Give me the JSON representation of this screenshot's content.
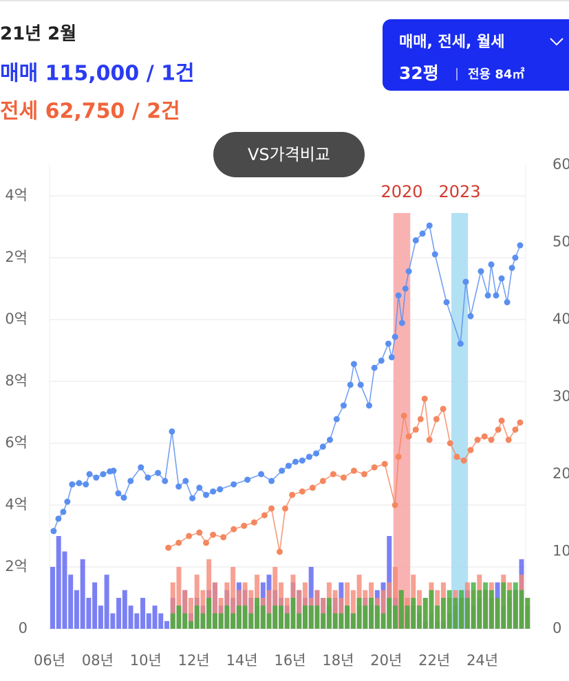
{
  "header": {
    "date": "21년 2월",
    "sale": "매매 115,000 / 1건",
    "jeonse": "전세 62,750 / 2건"
  },
  "filter": {
    "types": "매매, 전세, 월세",
    "size": "32평",
    "area": "전용 84㎡"
  },
  "compare_button": "VS가격비교",
  "chart_data": {
    "type": "line",
    "xlim": [
      2006,
      2025.8
    ],
    "xticks": [
      {
        "value": 2006,
        "label": "06년"
      },
      {
        "value": 2008,
        "label": "08년"
      },
      {
        "value": 2010,
        "label": "10년"
      },
      {
        "value": 2012,
        "label": "12년"
      },
      {
        "value": 2014,
        "label": "14년"
      },
      {
        "value": 2016,
        "label": "16년"
      },
      {
        "value": 2018,
        "label": "18년"
      },
      {
        "value": 2020,
        "label": "20년"
      },
      {
        "value": 2022,
        "label": "22년"
      },
      {
        "value": 2024,
        "label": "24년"
      }
    ],
    "ylim": [
      0,
      15
    ],
    "yticks": [
      0,
      {
        "value": 2,
        "label": "2억"
      },
      {
        "value": 4,
        "label": "4억"
      },
      {
        "value": 6,
        "label": "6억"
      },
      {
        "value": 8,
        "label": "8억"
      },
      {
        "value": 10,
        "label": "0억"
      },
      {
        "value": 12,
        "label": "2억"
      },
      {
        "value": 14,
        "label": "4억"
      }
    ],
    "y2lim": [
      0,
      60
    ],
    "y2ticks": [
      0,
      10,
      20,
      30,
      40,
      50,
      60
    ],
    "grid": true,
    "bands": [
      {
        "label": "2020",
        "from": 2020.3,
        "to": 2021.0,
        "color": "#f8a4a4",
        "label_color": "#d43a2f"
      },
      {
        "label": "2023",
        "from": 2022.71,
        "to": 2023.4,
        "color": "#a6dcf2",
        "label_color": "#d43a2f"
      }
    ],
    "series": [
      {
        "color": "#5a8ff0",
        "x": [
          2006.17,
          2006.37,
          2006.57,
          2006.74,
          2006.94,
          2007.23,
          2007.51,
          2007.66,
          2007.94,
          2008.23,
          2008.51,
          2008.66,
          2008.86,
          2009.09,
          2009.37,
          2009.8,
          2010.09,
          2010.51,
          2010.8,
          2011.09,
          2011.37,
          2011.66,
          2011.94,
          2012.23,
          2012.51,
          2012.8,
          2013.09,
          2013.66,
          2014.23,
          2014.8,
          2015.23,
          2015.66,
          2015.94,
          2016.23,
          2016.51,
          2016.8,
          2017.09,
          2017.37,
          2017.66,
          2017.94,
          2018.23,
          2018.51,
          2018.66,
          2018.94,
          2019.29,
          2019.51,
          2019.8,
          2020.09,
          2020.23,
          2020.37,
          2020.51,
          2020.66,
          2020.8,
          2020.94,
          2021.23,
          2021.51,
          2021.8,
          2022.03,
          2022.51,
          2023.09,
          2023.31,
          2023.51,
          2023.94,
          2024.23,
          2024.37,
          2024.57,
          2024.8,
          2025.03,
          2025.23,
          2025.37,
          2025.57
        ],
        "values": [
          3.16,
          3.56,
          3.78,
          4.11,
          4.67,
          4.71,
          4.67,
          5.0,
          4.89,
          5.0,
          5.09,
          5.11,
          4.38,
          4.24,
          4.78,
          5.22,
          4.89,
          5.04,
          4.78,
          6.38,
          4.6,
          4.78,
          4.22,
          4.56,
          4.33,
          4.44,
          4.51,
          4.67,
          4.82,
          5.0,
          4.78,
          5.11,
          5.27,
          5.4,
          5.44,
          5.56,
          5.67,
          5.89,
          6.11,
          6.78,
          7.22,
          7.89,
          8.56,
          7.89,
          7.22,
          8.44,
          8.67,
          9.22,
          8.78,
          9.44,
          10.78,
          9.89,
          11.0,
          11.56,
          12.56,
          12.78,
          13.04,
          12.11,
          10.56,
          9.22,
          11.22,
          10.11,
          11.56,
          10.78,
          11.78,
          10.78,
          11.33,
          10.56,
          11.67,
          12.0,
          12.4
        ]
      },
      {
        "color": "#f4875f",
        "x": [
          2010.94,
          2011.37,
          2011.8,
          2012.23,
          2012.51,
          2012.8,
          2013.23,
          2013.66,
          2014.09,
          2014.51,
          2014.94,
          2015.23,
          2015.57,
          2015.8,
          2016.09,
          2016.51,
          2016.94,
          2017.37,
          2017.8,
          2018.23,
          2018.66,
          2019.09,
          2019.51,
          2019.94,
          2020.37,
          2020.51,
          2020.74,
          2020.94,
          2021.23,
          2021.43,
          2021.6,
          2021.8,
          2022.09,
          2022.37,
          2022.66,
          2022.94,
          2023.23,
          2023.51,
          2023.8,
          2024.09,
          2024.37,
          2024.66,
          2024.8,
          2025.09,
          2025.37,
          2025.57
        ],
        "values": [
          2.62,
          2.78,
          3.0,
          3.11,
          2.78,
          3.04,
          2.96,
          3.22,
          3.33,
          3.44,
          3.67,
          3.89,
          2.49,
          3.89,
          4.33,
          4.44,
          4.56,
          4.78,
          5.0,
          4.89,
          5.11,
          5.0,
          5.22,
          5.33,
          4.0,
          5.56,
          6.89,
          6.22,
          6.44,
          6.78,
          7.44,
          6.11,
          6.78,
          7.11,
          6.0,
          5.56,
          5.44,
          5.78,
          6.11,
          6.22,
          6.11,
          6.44,
          6.73,
          6.11,
          6.44,
          6.67
        ]
      }
    ],
    "bar_x": [
      2006,
      2006.25,
      2006.5,
      2006.75,
      2007,
      2007.25,
      2007.5,
      2007.75,
      2008,
      2008.25,
      2008.5,
      2008.75,
      2009,
      2009.25,
      2009.5,
      2009.75,
      2010,
      2010.25,
      2010.5,
      2010.75,
      2011,
      2011.25,
      2011.5,
      2011.75,
      2012,
      2012.25,
      2012.5,
      2012.75,
      2013,
      2013.25,
      2013.5,
      2013.75,
      2014,
      2014.25,
      2014.5,
      2014.75,
      2015,
      2015.25,
      2015.5,
      2015.75,
      2016,
      2016.25,
      2016.5,
      2016.75,
      2017,
      2017.25,
      2017.5,
      2017.75,
      2018,
      2018.25,
      2018.5,
      2018.75,
      2019,
      2019.25,
      2019.5,
      2019.75,
      2020,
      2020.25,
      2020.5,
      2020.75,
      2021,
      2021.25,
      2021.5,
      2021.75,
      2022,
      2022.25,
      2022.5,
      2022.75,
      2023,
      2023.25,
      2023.5,
      2023.75,
      2024,
      2024.25,
      2024.5,
      2024.75,
      2025,
      2025.25,
      2025.5,
      2025.75
    ],
    "bar_series": [
      {
        "color": "#5a62f0",
        "axis": "y2",
        "values": [
          8,
          12,
          10,
          7,
          5,
          9,
          4,
          6,
          3,
          7,
          2,
          4,
          5,
          3,
          2,
          4,
          2,
          3,
          2,
          1,
          4,
          3,
          5,
          2,
          4,
          3,
          5,
          6,
          3,
          5,
          4,
          6,
          5,
          4,
          3,
          6,
          7,
          5,
          4,
          3,
          6,
          5,
          4,
          8,
          5,
          4,
          3,
          4,
          6,
          3,
          2,
          3,
          4,
          3,
          5,
          6,
          12,
          4,
          3,
          2,
          3,
          2,
          1,
          2,
          1,
          1,
          2,
          3,
          4,
          5,
          3,
          4,
          5,
          4,
          6,
          3,
          4,
          5,
          9,
          3
        ]
      },
      {
        "color": "#f48a78",
        "axis": "y2",
        "values": [
          null,
          null,
          null,
          null,
          null,
          null,
          null,
          null,
          null,
          null,
          null,
          null,
          null,
          null,
          null,
          null,
          null,
          null,
          null,
          null,
          6,
          8,
          5,
          4,
          7,
          5,
          9,
          6,
          4,
          6,
          8,
          5,
          6,
          5,
          7,
          4,
          5,
          8,
          6,
          4,
          7,
          5,
          6,
          4,
          5,
          4,
          6,
          5,
          4,
          6,
          5,
          7,
          5,
          6,
          4,
          5,
          6,
          8,
          5,
          4,
          7,
          5,
          4,
          6,
          5,
          6,
          4,
          5,
          4,
          6,
          5,
          7,
          5,
          6,
          4,
          7,
          6,
          5,
          7,
          4
        ]
      },
      {
        "color": "#3fae3a",
        "axis": "y2",
        "values": [
          null,
          null,
          null,
          null,
          null,
          null,
          null,
          null,
          null,
          null,
          null,
          null,
          null,
          null,
          null,
          null,
          null,
          null,
          null,
          null,
          2,
          3,
          2,
          1,
          3,
          2,
          4,
          2,
          2,
          3,
          2,
          3,
          3,
          2,
          4,
          3,
          2,
          3,
          3,
          2,
          4,
          2,
          3,
          3,
          3,
          2,
          4,
          2,
          2,
          3,
          2,
          4,
          3,
          4,
          3,
          2,
          4,
          3,
          5,
          3,
          4,
          3,
          4,
          5,
          3,
          4,
          5,
          4,
          5,
          4,
          6,
          5,
          6,
          5,
          4,
          6,
          5,
          6,
          5,
          4
        ]
      }
    ]
  }
}
